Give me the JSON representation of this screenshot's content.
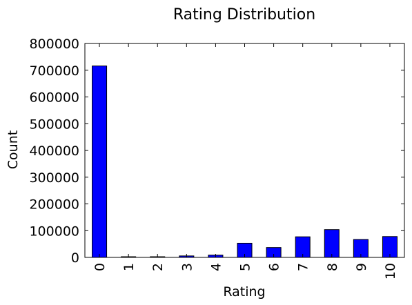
{
  "chart_data": {
    "type": "bar",
    "title": "Rating Distribution",
    "xlabel": "Rating",
    "ylabel": "Count",
    "categories": [
      "0",
      "1",
      "2",
      "3",
      "4",
      "5",
      "6",
      "7",
      "8",
      "9",
      "10"
    ],
    "values": [
      716000,
      2500,
      2500,
      5500,
      8500,
      53000,
      37000,
      77000,
      104000,
      67000,
      78000
    ],
    "ylim": [
      0,
      800000
    ],
    "yticks": [
      0,
      100000,
      200000,
      300000,
      400000,
      500000,
      600000,
      700000,
      800000
    ],
    "ytick_labels": [
      "0",
      "100000",
      "200000",
      "300000",
      "400000",
      "500000",
      "600000",
      "700000",
      "800000"
    ],
    "bar_color": "#0000ff",
    "edge_color": "#000000",
    "grid": false,
    "legend": "none",
    "xtick_rotation": "vertical"
  }
}
